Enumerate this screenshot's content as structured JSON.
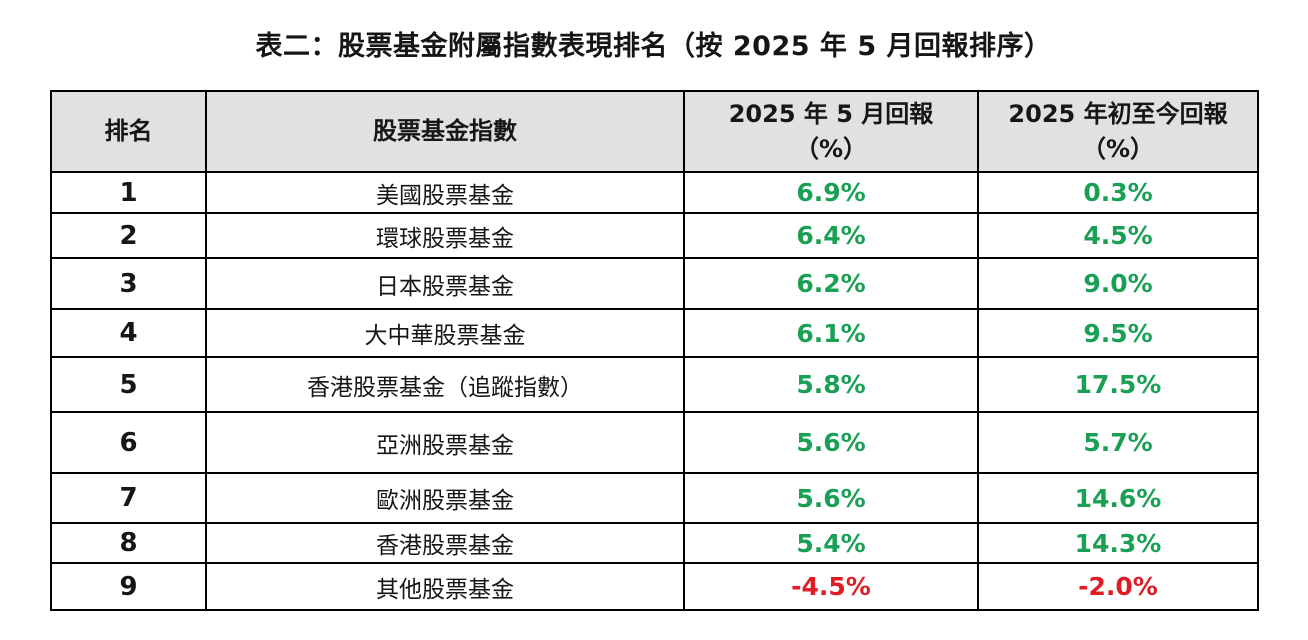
{
  "title": "表二：股票基金附屬指數表現排名（按 2025 年 5 月回報排序）",
  "colors": {
    "positive": "#1aa054",
    "negative": "#e01c24",
    "header_bg": "#e1e1e1",
    "grid": "#000000"
  },
  "table": {
    "columns": [
      {
        "label": "排名",
        "sub": ""
      },
      {
        "label": "股票基金指數",
        "sub": ""
      },
      {
        "label": "2025 年 5 月回報",
        "sub": "（%）"
      },
      {
        "label": "2025 年初至今回報",
        "sub": "（%）"
      }
    ],
    "rows": [
      {
        "rank": "1",
        "fund": "美國股票基金",
        "may_return": "6.9%",
        "ytd_return": "0.3%"
      },
      {
        "rank": "2",
        "fund": "環球股票基金",
        "may_return": "6.4%",
        "ytd_return": "4.5%"
      },
      {
        "rank": "3",
        "fund": "日本股票基金",
        "may_return": "6.2%",
        "ytd_return": "9.0%"
      },
      {
        "rank": "4",
        "fund": "大中華股票基金",
        "may_return": "6.1%",
        "ytd_return": "9.5%"
      },
      {
        "rank": "5",
        "fund": "香港股票基金（追蹤指數）",
        "may_return": "5.8%",
        "ytd_return": "17.5%"
      },
      {
        "rank": "6",
        "fund": "亞洲股票基金",
        "may_return": "5.6%",
        "ytd_return": "5.7%"
      },
      {
        "rank": "7",
        "fund": "歐洲股票基金",
        "may_return": "5.6%",
        "ytd_return": "14.6%"
      },
      {
        "rank": "8",
        "fund": "香港股票基金",
        "may_return": "5.4%",
        "ytd_return": "14.3%"
      },
      {
        "rank": "9",
        "fund": "其他股票基金",
        "may_return": "-4.5%",
        "ytd_return": "-2.0%"
      }
    ]
  },
  "chart_data": {
    "type": "table",
    "title": "表二：股票基金附屬指數表現排名（按 2025 年 5 月回報排序）",
    "categories": [
      "美國股票基金",
      "環球股票基金",
      "日本股票基金",
      "大中華股票基金",
      "香港股票基金（追蹤指數）",
      "亞洲股票基金",
      "歐洲股票基金",
      "香港股票基金",
      "其他股票基金"
    ],
    "series": [
      {
        "name": "2025 年 5 月回報 (%)",
        "values": [
          6.9,
          6.4,
          6.2,
          6.1,
          5.8,
          5.6,
          5.6,
          5.4,
          -4.5
        ]
      },
      {
        "name": "2025 年初至今回報 (%)",
        "values": [
          0.3,
          4.5,
          9.0,
          9.5,
          17.5,
          5.7,
          14.6,
          14.3,
          -2.0
        ]
      }
    ]
  }
}
